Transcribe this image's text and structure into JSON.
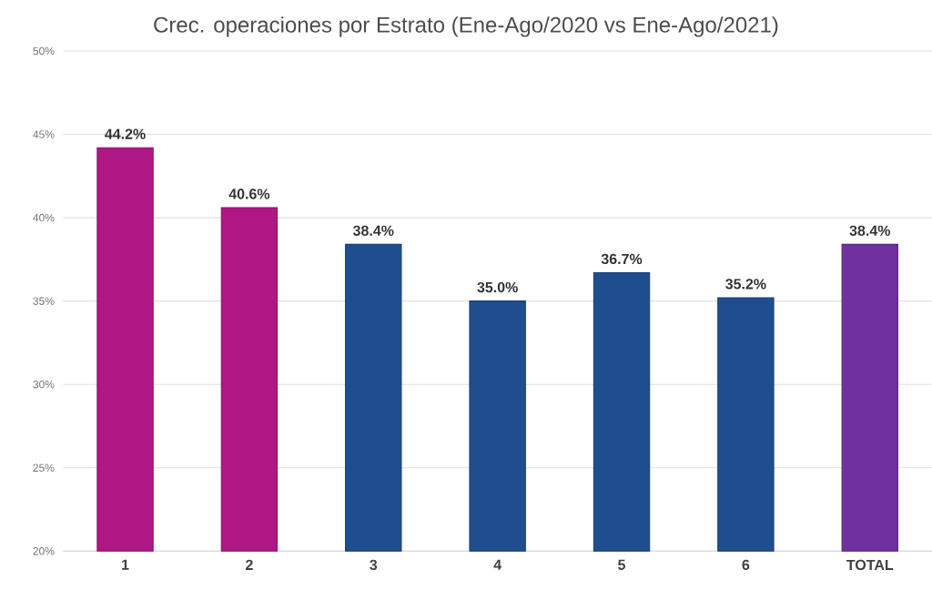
{
  "chart_data": {
    "type": "bar",
    "title": "Crec. operaciones por Estrato (Ene-Ago/2020 vs Ene-Ago/2021)",
    "categories": [
      "1",
      "2",
      "3",
      "4",
      "5",
      "6",
      "TOTAL"
    ],
    "values": [
      44.2,
      40.6,
      38.4,
      35.0,
      36.7,
      35.2,
      38.4
    ],
    "colors": [
      "#ae1784",
      "#ae1784",
      "#1f4e8f",
      "#1f4e8f",
      "#1f4e8f",
      "#1f4e8f",
      "#7030a0"
    ],
    "value_labels": [
      "44.2%",
      "40.6%",
      "38.4%",
      "35.0%",
      "36.7%",
      "35.2%",
      "38.4%"
    ],
    "ylim": [
      20,
      50
    ],
    "yticks": [
      {
        "value": 20,
        "label": "20%"
      },
      {
        "value": 25,
        "label": "25%"
      },
      {
        "value": 30,
        "label": "30%"
      },
      {
        "value": 35,
        "label": "35%"
      },
      {
        "value": 40,
        "label": "40%"
      },
      {
        "value": 45,
        "label": "45%"
      },
      {
        "value": 50,
        "label": "50%"
      }
    ],
    "grid": "y"
  }
}
